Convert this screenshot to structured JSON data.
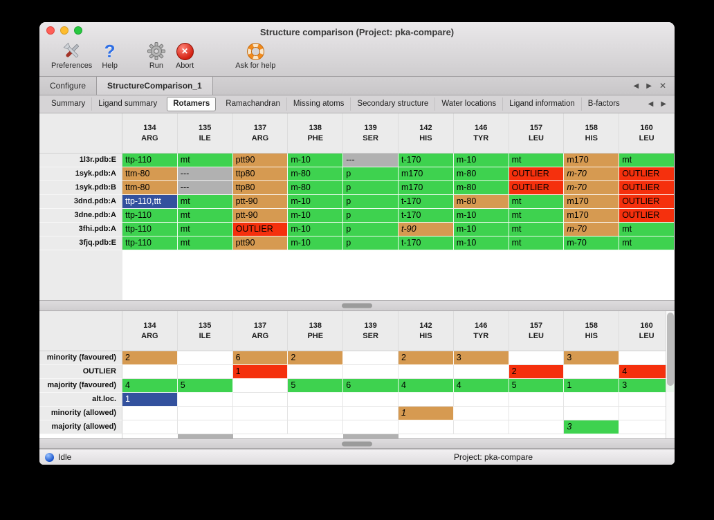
{
  "window": {
    "title": "Structure comparison (Project: pka-compare)"
  },
  "toolbar": [
    {
      "label": "Preferences"
    },
    {
      "label": "Help"
    },
    {
      "label": "Run"
    },
    {
      "label": "Abort"
    },
    {
      "label": "Ask for help"
    }
  ],
  "glyphs": {
    "left": "◀",
    "right": "▶",
    "close": "✕",
    "help": "?"
  },
  "main_tabs": {
    "tabs": [
      "Configure",
      "StructureComparison_1"
    ],
    "active": "StructureComparison_1"
  },
  "sub_tabs": {
    "tabs": [
      "Summary",
      "Ligand summary",
      "Rotamers",
      "Ramachandran",
      "Missing atoms",
      "Secondary structure",
      "Water locations",
      "Ligand information",
      "B-factors"
    ],
    "active": "Rotamers"
  },
  "columns": [
    {
      "num": "134",
      "res": "ARG"
    },
    {
      "num": "135",
      "res": "ILE"
    },
    {
      "num": "137",
      "res": "ARG"
    },
    {
      "num": "138",
      "res": "PHE"
    },
    {
      "num": "139",
      "res": "SER"
    },
    {
      "num": "142",
      "res": "HIS"
    },
    {
      "num": "146",
      "res": "TYR"
    },
    {
      "num": "157",
      "res": "LEU"
    },
    {
      "num": "158",
      "res": "HIS"
    },
    {
      "num": "160",
      "res": "LEU"
    }
  ],
  "structures_table": {
    "rows": [
      {
        "label": "1l3r.pdb:E",
        "cells": [
          {
            "text": "ttp-110",
            "color": "green"
          },
          {
            "text": "mt",
            "color": "green"
          },
          {
            "text": "ptt90",
            "color": "orange"
          },
          {
            "text": "m-10",
            "color": "green"
          },
          {
            "text": "---",
            "color": "gray"
          },
          {
            "text": "t-170",
            "color": "green"
          },
          {
            "text": "m-10",
            "color": "green"
          },
          {
            "text": "mt",
            "color": "green"
          },
          {
            "text": "m170",
            "color": "orange"
          },
          {
            "text": "mt",
            "color": "green"
          }
        ]
      },
      {
        "label": "1syk.pdb:A",
        "cells": [
          {
            "text": "ttm-80",
            "color": "orange"
          },
          {
            "text": "---",
            "color": "gray"
          },
          {
            "text": "ttp80",
            "color": "orange"
          },
          {
            "text": "m-80",
            "color": "green"
          },
          {
            "text": "p",
            "color": "green"
          },
          {
            "text": "m170",
            "color": "green"
          },
          {
            "text": "m-80",
            "color": "green"
          },
          {
            "text": "OUTLIER",
            "color": "red"
          },
          {
            "text": "m-70",
            "color": "orange",
            "italic": true
          },
          {
            "text": "OUTLIER",
            "color": "red"
          }
        ]
      },
      {
        "label": "1syk.pdb:B",
        "cells": [
          {
            "text": "ttm-80",
            "color": "orange"
          },
          {
            "text": "---",
            "color": "gray"
          },
          {
            "text": "ttp80",
            "color": "orange"
          },
          {
            "text": "m-80",
            "color": "green"
          },
          {
            "text": "p",
            "color": "green"
          },
          {
            "text": "m170",
            "color": "green"
          },
          {
            "text": "m-80",
            "color": "green"
          },
          {
            "text": "OUTLIER",
            "color": "red"
          },
          {
            "text": "m-70",
            "color": "orange",
            "italic": true
          },
          {
            "text": "OUTLIER",
            "color": "red"
          }
        ]
      },
      {
        "label": "3dnd.pdb:A",
        "cells": [
          {
            "text": "ttp-110,ttt",
            "color": "blue"
          },
          {
            "text": "mt",
            "color": "green"
          },
          {
            "text": "ptt-90",
            "color": "orange"
          },
          {
            "text": "m-10",
            "color": "green"
          },
          {
            "text": "p",
            "color": "green"
          },
          {
            "text": "t-170",
            "color": "green"
          },
          {
            "text": "m-80",
            "color": "orange"
          },
          {
            "text": "mt",
            "color": "green"
          },
          {
            "text": "m170",
            "color": "orange"
          },
          {
            "text": "OUTLIER",
            "color": "red"
          }
        ]
      },
      {
        "label": "3dne.pdb:A",
        "cells": [
          {
            "text": "ttp-110",
            "color": "green"
          },
          {
            "text": "mt",
            "color": "green"
          },
          {
            "text": "ptt-90",
            "color": "orange"
          },
          {
            "text": "m-10",
            "color": "green"
          },
          {
            "text": "p",
            "color": "green"
          },
          {
            "text": "t-170",
            "color": "green"
          },
          {
            "text": "m-10",
            "color": "green"
          },
          {
            "text": "mt",
            "color": "green"
          },
          {
            "text": "m170",
            "color": "orange"
          },
          {
            "text": "OUTLIER",
            "color": "red"
          }
        ]
      },
      {
        "label": "3fhi.pdb:A",
        "cells": [
          {
            "text": "ttp-110",
            "color": "green"
          },
          {
            "text": "mt",
            "color": "green"
          },
          {
            "text": "OUTLIER",
            "color": "red"
          },
          {
            "text": "m-10",
            "color": "green"
          },
          {
            "text": "p",
            "color": "green"
          },
          {
            "text": "t-90",
            "color": "orange",
            "italic": true
          },
          {
            "text": "m-10",
            "color": "green"
          },
          {
            "text": "mt",
            "color": "green"
          },
          {
            "text": "m-70",
            "color": "orange",
            "italic": true
          },
          {
            "text": "mt",
            "color": "green"
          }
        ]
      },
      {
        "label": "3fjq.pdb:E",
        "cells": [
          {
            "text": "ttp-110",
            "color": "green"
          },
          {
            "text": "mt",
            "color": "green"
          },
          {
            "text": "ptt90",
            "color": "orange"
          },
          {
            "text": "m-10",
            "color": "green"
          },
          {
            "text": "p",
            "color": "green"
          },
          {
            "text": "t-170",
            "color": "green"
          },
          {
            "text": "m-10",
            "color": "green"
          },
          {
            "text": "mt",
            "color": "green"
          },
          {
            "text": "m-70",
            "color": "green"
          },
          {
            "text": "mt",
            "color": "green"
          }
        ]
      }
    ]
  },
  "summary_table": {
    "rows": [
      {
        "label": "minority (favoured)",
        "cells": [
          {
            "text": "2",
            "color": "orange"
          },
          null,
          {
            "text": "6",
            "color": "orange"
          },
          {
            "text": "2",
            "color": "orange"
          },
          null,
          {
            "text": "2",
            "color": "orange"
          },
          {
            "text": "3",
            "color": "orange"
          },
          null,
          {
            "text": "3",
            "color": "orange"
          },
          null
        ]
      },
      {
        "label": "OUTLIER",
        "cells": [
          null,
          null,
          {
            "text": "1",
            "color": "red"
          },
          null,
          null,
          null,
          null,
          {
            "text": "2",
            "color": "red"
          },
          null,
          {
            "text": "4",
            "color": "red"
          }
        ]
      },
      {
        "label": "majority (favoured)",
        "cells": [
          {
            "text": "4",
            "color": "green"
          },
          {
            "text": "5",
            "color": "green"
          },
          null,
          {
            "text": "5",
            "color": "green"
          },
          {
            "text": "6",
            "color": "green"
          },
          {
            "text": "4",
            "color": "green"
          },
          {
            "text": "4",
            "color": "green"
          },
          {
            "text": "5",
            "color": "green"
          },
          {
            "text": "1",
            "color": "green"
          },
          {
            "text": "3",
            "color": "green"
          }
        ]
      },
      {
        "label": "alt.loc.",
        "cells": [
          {
            "text": "1",
            "color": "blue"
          },
          null,
          null,
          null,
          null,
          null,
          null,
          null,
          null,
          null
        ]
      },
      {
        "label": "minority (allowed)",
        "cells": [
          null,
          null,
          null,
          null,
          null,
          {
            "text": "1",
            "color": "orange",
            "italic": true
          },
          null,
          null,
          null,
          null
        ]
      },
      {
        "label": "majority (allowed)",
        "cells": [
          null,
          null,
          null,
          null,
          null,
          null,
          null,
          null,
          {
            "text": "3",
            "color": "green",
            "italic": true
          },
          null
        ]
      }
    ],
    "partial_gray_columns": [
      1,
      4
    ]
  },
  "status_bar": {
    "left": "Idle",
    "right": "Project: pka-compare"
  },
  "colors": {
    "green": "#3ed24f",
    "orange": "#d69a51",
    "red": "#f5300d",
    "gray": "#b1b1b1",
    "blue": "#33519e"
  }
}
